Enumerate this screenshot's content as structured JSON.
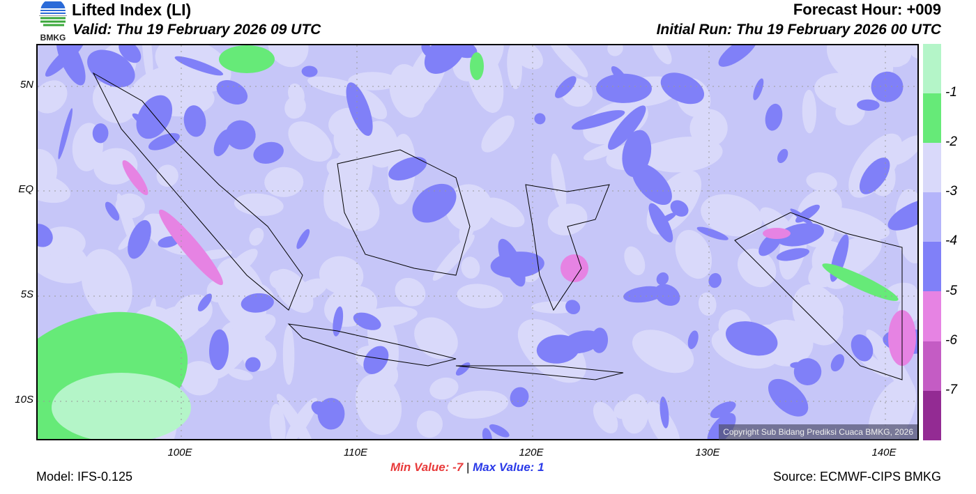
{
  "header": {
    "title": "Lifted Index (LI)",
    "valid": "Valid: Thu 19 February 2026 09 UTC",
    "forecast_hour": "Forecast Hour: +009",
    "initial_run": "Initial Run: Thu 19 February 2026 00 UTC",
    "logo_text": "BMKG"
  },
  "map": {
    "lat_labels": [
      "5N",
      "EQ",
      "5S",
      "10S"
    ],
    "lon_labels": [
      "100E",
      "110E",
      "120E",
      "130E",
      "140E"
    ],
    "copyright": "Copyright Sub Bidang Prediksi Cuaca BMKG, 2026"
  },
  "colorbar": {
    "colors": [
      "#b4f5c8",
      "#66ea78",
      "#d9d9fa",
      "#b4b4fa",
      "#8080f8",
      "#e683e3",
      "#c45cc4",
      "#932b93"
    ],
    "labels": [
      "-1",
      "-2",
      "-3",
      "-4",
      "-5",
      "-6",
      "-7"
    ]
  },
  "footer": {
    "min_label": "Min Value:",
    "min_value": "-7",
    "max_label": "Max Value:",
    "max_value": "1",
    "separator": "|",
    "model": "Model: IFS-0.125",
    "source": "Source: ECMWF-CIPS BMKG"
  },
  "colors": {
    "min": "#e83a3a",
    "max": "#2a3ae8"
  }
}
